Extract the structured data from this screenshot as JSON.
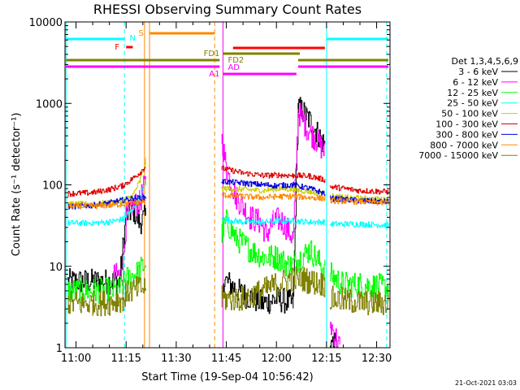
{
  "chart_data": {
    "type": "line",
    "title": "RHESSI Observing Summary Count Rates",
    "xlabel": "Start Time (19-Sep-04 10:56:42)",
    "ylabel": "Count Rate (s⁻¹ detector⁻¹)",
    "yscale": "log",
    "xlim": [
      "10:56:42",
      "12:34:00"
    ],
    "ylim": [
      1,
      10000
    ],
    "x_ticks": [
      "11:00",
      "11:15",
      "11:30",
      "11:45",
      "12:00",
      "12:15",
      "12:30"
    ],
    "y_ticks": [
      1,
      10,
      100,
      1000,
      10000
    ],
    "y_tick_labels": [
      "1",
      "10",
      "100",
      "1000",
      "10000"
    ],
    "grid": false,
    "legend_title": "Det 1,3,4,5,6,9",
    "legend_position": "right",
    "footer_date": "21-Oct-2021 03:03",
    "gaps": [
      [
        "11:21:00",
        "11:42:30"
      ],
      [
        "12:15:00",
        "12:16:00"
      ]
    ],
    "series": [
      {
        "name": "3 - 6 keV",
        "color": "#000000",
        "points": [
          [
            "10:57:30",
            6.5
          ],
          [
            "11:13:00",
            6.5
          ],
          [
            "11:15:00",
            42
          ],
          [
            "11:17:00",
            50
          ],
          [
            "11:19:00",
            35
          ],
          [
            "11:20:50",
            40
          ],
          [
            "11:44:00",
            7
          ],
          [
            "11:50:00",
            4.5
          ],
          [
            "11:56:00",
            3.5
          ],
          [
            "12:00:00",
            4
          ],
          [
            "12:05:00",
            3.5
          ],
          [
            "12:06:30",
            900
          ],
          [
            "12:09:00",
            700
          ],
          [
            "12:12:00",
            450
          ],
          [
            "12:14:30",
            300
          ],
          [
            "12:16:00",
            1.2
          ],
          [
            "12:18:00",
            1
          ]
        ]
      },
      {
        "name": "6 - 12 keV",
        "color": "#ff00ff",
        "points": [
          [
            "11:11:00",
            7.5
          ],
          [
            "11:14:00",
            8
          ],
          [
            "11:15:00",
            40
          ],
          [
            "11:17:00",
            55
          ],
          [
            "11:19:00",
            60
          ],
          [
            "11:20:50",
            110
          ],
          [
            "11:43:30",
            400
          ],
          [
            "11:45:00",
            150
          ],
          [
            "11:48:00",
            70
          ],
          [
            "11:52:00",
            40
          ],
          [
            "11:55:00",
            35
          ],
          [
            "11:57:00",
            25
          ],
          [
            "11:59:00",
            35
          ],
          [
            "12:01:00",
            38
          ],
          [
            "12:03:00",
            30
          ],
          [
            "12:05:00",
            22
          ],
          [
            "12:06:30",
            800
          ],
          [
            "12:09:00",
            500
          ],
          [
            "12:12:00",
            350
          ],
          [
            "12:14:30",
            250
          ],
          [
            "12:16:00",
            2
          ],
          [
            "12:19:00",
            1
          ]
        ]
      },
      {
        "name": "12 - 25 keV",
        "color": "#00ff00",
        "points": [
          [
            "10:57:30",
            5
          ],
          [
            "11:13:00",
            5
          ],
          [
            "11:15:00",
            7
          ],
          [
            "11:18:00",
            8
          ],
          [
            "11:20:50",
            11
          ],
          [
            "11:43:30",
            25
          ],
          [
            "11:45:00",
            35
          ],
          [
            "11:48:00",
            22
          ],
          [
            "11:52:00",
            16
          ],
          [
            "11:56:00",
            13
          ],
          [
            "12:00:00",
            13
          ],
          [
            "12:04:00",
            10
          ],
          [
            "12:06:30",
            12
          ],
          [
            "12:10:00",
            16
          ],
          [
            "12:14:30",
            9
          ],
          [
            "12:16:00",
            8
          ],
          [
            "12:20:00",
            6
          ],
          [
            "12:25:00",
            6
          ],
          [
            "12:33:30",
            5.5
          ]
        ]
      },
      {
        "name": "25 - 50 keV",
        "color": "#00ffff",
        "points": [
          [
            "10:57:30",
            34
          ],
          [
            "11:05:00",
            34
          ],
          [
            "11:10:00",
            35
          ],
          [
            "11:14:00",
            38
          ],
          [
            "11:17:00",
            50
          ],
          [
            "11:19:00",
            70
          ],
          [
            "11:20:50",
            110
          ],
          [
            "11:43:30",
            38
          ],
          [
            "11:50:00",
            35
          ],
          [
            "11:56:00",
            35
          ],
          [
            "12:00:00",
            36
          ],
          [
            "12:05:00",
            36
          ],
          [
            "12:10:00",
            35
          ],
          [
            "12:14:30",
            35
          ],
          [
            "12:16:00",
            33
          ],
          [
            "12:25:00",
            33
          ],
          [
            "12:33:30",
            32
          ]
        ]
      },
      {
        "name": "50 - 100 keV",
        "color": "#cccc00",
        "points": [
          [
            "10:57:30",
            58
          ],
          [
            "11:05:00",
            58
          ],
          [
            "11:10:00",
            60
          ],
          [
            "11:14:00",
            62
          ],
          [
            "11:17:00",
            75
          ],
          [
            "11:19:00",
            110
          ],
          [
            "11:20:50",
            200
          ],
          [
            "11:43:30",
            90
          ],
          [
            "11:50:00",
            88
          ],
          [
            "11:56:00",
            85
          ],
          [
            "12:00:00",
            90
          ],
          [
            "12:05:00",
            88
          ],
          [
            "12:10:00",
            82
          ],
          [
            "12:14:30",
            78
          ],
          [
            "12:16:00",
            72
          ],
          [
            "12:25:00",
            68
          ],
          [
            "12:33:30",
            66
          ]
        ]
      },
      {
        "name": "100 - 300 keV",
        "color": "#dd0000",
        "points": [
          [
            "10:57:30",
            78
          ],
          [
            "11:05:00",
            80
          ],
          [
            "11:10:00",
            88
          ],
          [
            "11:14:00",
            98
          ],
          [
            "11:17:00",
            120
          ],
          [
            "11:19:00",
            140
          ],
          [
            "11:20:50",
            170
          ],
          [
            "11:43:30",
            160
          ],
          [
            "11:50:00",
            140
          ],
          [
            "11:56:00",
            130
          ],
          [
            "12:00:00",
            132
          ],
          [
            "12:05:00",
            130
          ],
          [
            "12:10:00",
            128
          ],
          [
            "12:14:30",
            115
          ],
          [
            "12:16:00",
            95
          ],
          [
            "12:25:00",
            85
          ],
          [
            "12:33:30",
            82
          ]
        ]
      },
      {
        "name": "300 - 800 keV",
        "color": "#0000dd",
        "points": [
          [
            "10:57:30",
            54
          ],
          [
            "11:05:00",
            56
          ],
          [
            "11:10:00",
            60
          ],
          [
            "11:14:00",
            65
          ],
          [
            "11:17:00",
            68
          ],
          [
            "11:20:50",
            70
          ],
          [
            "11:43:30",
            110
          ],
          [
            "11:50:00",
            105
          ],
          [
            "11:56:00",
            100
          ],
          [
            "12:00:00",
            98
          ],
          [
            "12:05:00",
            100
          ],
          [
            "12:10:00",
            90
          ],
          [
            "12:14:30",
            78
          ],
          [
            "12:16:00",
            68
          ],
          [
            "12:25:00",
            64
          ],
          [
            "12:33:30",
            62
          ]
        ]
      },
      {
        "name": "800 - 7000 keV",
        "color": "#ff8800",
        "points": [
          [
            "10:57:30",
            55
          ],
          [
            "11:05:00",
            55
          ],
          [
            "11:10:00",
            56
          ],
          [
            "11:14:00",
            58
          ],
          [
            "11:17:00",
            60
          ],
          [
            "11:20:50",
            62
          ],
          [
            "11:43:30",
            75
          ],
          [
            "11:50:00",
            72
          ],
          [
            "11:56:00",
            70
          ],
          [
            "12:00:00",
            72
          ],
          [
            "12:05:00",
            72
          ],
          [
            "12:10:00",
            70
          ],
          [
            "12:14:30",
            68
          ],
          [
            "12:16:00",
            64
          ],
          [
            "12:25:00",
            62
          ],
          [
            "12:33:30",
            60
          ]
        ]
      },
      {
        "name": "7000 - 15000 keV",
        "color": "#808000",
        "points": [
          [
            "10:57:30",
            3.5
          ],
          [
            "11:05:00",
            3.5
          ],
          [
            "11:10:00",
            3.6
          ],
          [
            "11:14:00",
            4
          ],
          [
            "11:16:00",
            5
          ],
          [
            "11:20:50",
            5.5
          ],
          [
            "11:43:30",
            4
          ],
          [
            "11:50:00",
            4
          ],
          [
            "11:56:00",
            5
          ],
          [
            "12:00:00",
            6
          ],
          [
            "12:04:00",
            7
          ],
          [
            "12:08:00",
            7
          ],
          [
            "12:10:00",
            6.5
          ],
          [
            "12:14:30",
            6
          ],
          [
            "12:16:00",
            4
          ],
          [
            "12:25:00",
            3.6
          ],
          [
            "12:33:30",
            3.5
          ]
        ]
      }
    ],
    "flags": [
      {
        "label": "S",
        "color": "#ff8800",
        "segments": [
          [
            "11:22:00",
            "11:41:30"
          ]
        ],
        "level": 2
      },
      {
        "label": "N",
        "color": "#00ffff",
        "segments": [
          [
            "10:57:00",
            "11:14:30"
          ],
          [
            "12:15:00",
            "12:33:30"
          ]
        ],
        "level": 1
      },
      {
        "label": "F",
        "color": "#ff0000",
        "segments": [
          [
            "11:15:00",
            "11:17:00"
          ]
        ],
        "level": 3
      },
      {
        "label": "",
        "color": "#ff0000",
        "segments": [
          [
            "11:47:00",
            "12:14:30"
          ]
        ],
        "level": 4
      },
      {
        "label": "FD1",
        "color": "#808000",
        "segments": [
          [
            "11:44:00",
            "12:07:00"
          ]
        ],
        "level": 5
      },
      {
        "label": "",
        "color": "#808000",
        "segments": [
          [
            "10:57:00",
            "11:43:00"
          ],
          [
            "12:06:30",
            "12:33:30"
          ]
        ],
        "level": 6
      },
      {
        "label": "FD2",
        "color": "#808000",
        "segments": [],
        "level": 6
      },
      {
        "label": "AD",
        "color": "#ff00ff",
        "segments": [
          [
            "10:57:00",
            "11:43:00"
          ],
          [
            "12:06:30",
            "12:33:30"
          ]
        ],
        "level": 7
      },
      {
        "label": "A1",
        "color": "#ff00ff",
        "segments": [
          [
            "11:44:00",
            "12:06:00"
          ]
        ],
        "level": 8
      }
    ],
    "vlines": [
      {
        "time": "10:57:00",
        "color": "#00ffff",
        "style": "solid"
      },
      {
        "time": "11:14:30",
        "color": "#00ffff",
        "style": "dashed"
      },
      {
        "time": "11:20:30",
        "color": "#ff8800",
        "style": "solid"
      },
      {
        "time": "11:22:00",
        "color": "#ff8800",
        "style": "solid"
      },
      {
        "time": "11:41:30",
        "color": "#ff8800",
        "style": "dashed"
      },
      {
        "time": "11:44:00",
        "color": "#ff00ff",
        "style": "solid"
      },
      {
        "time": "12:15:00",
        "color": "#00ffff",
        "style": "solid"
      },
      {
        "time": "12:33:00",
        "color": "#00ffff",
        "style": "dashed"
      }
    ]
  }
}
